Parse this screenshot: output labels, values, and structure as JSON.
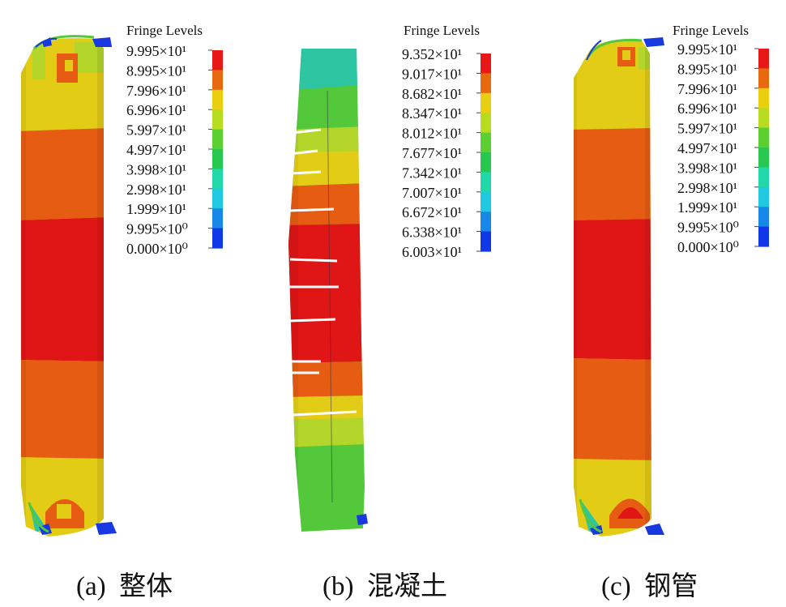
{
  "panels": [
    {
      "id": "a",
      "caption": "(a)  整体",
      "legend_title": "Fringe Levels",
      "levels": [
        "9.995×10¹",
        "8.995×10¹",
        "7.996×10¹",
        "6.996×10¹",
        "5.997×10¹",
        "4.997×10¹",
        "3.998×10¹",
        "2.998×10¹",
        "1.999×10¹",
        "9.995×10⁰",
        "0.000×10⁰"
      ]
    },
    {
      "id": "b",
      "caption": "(b)  混凝土",
      "legend_title": "Fringe Levels",
      "levels": [
        "9.352×10¹",
        "9.017×10¹",
        "8.682×10¹",
        "8.347×10¹",
        "8.012×10¹",
        "7.677×10¹",
        "7.342×10¹",
        "7.007×10¹",
        "6.672×10¹",
        "6.338×10¹",
        "6.003×10¹"
      ]
    },
    {
      "id": "c",
      "caption": "(c)  钢管",
      "legend_title": "Fringe Levels",
      "levels": [
        "9.995×10¹",
        "8.995×10¹",
        "7.996×10¹",
        "6.996×10¹",
        "5.997×10¹",
        "4.997×10¹",
        "3.998×10¹",
        "2.998×10¹",
        "1.999×10¹",
        "9.995×10⁰",
        "0.000×10⁰"
      ]
    }
  ],
  "colors": {
    "level_colors": [
      "#e81818",
      "#e86a10",
      "#e8d010",
      "#b8dc20",
      "#5cd030",
      "#28c850",
      "#20d8a8",
      "#20c8e0",
      "#1888e8",
      "#1038e8",
      "#0808d8"
    ],
    "red": "#e01616",
    "orange": "#e65c12",
    "yellow": "#e2cc16",
    "yellowgreen": "#b4d62a",
    "green": "#52c83a",
    "teal": "#2ec6a2",
    "blue": "#1838e0"
  }
}
